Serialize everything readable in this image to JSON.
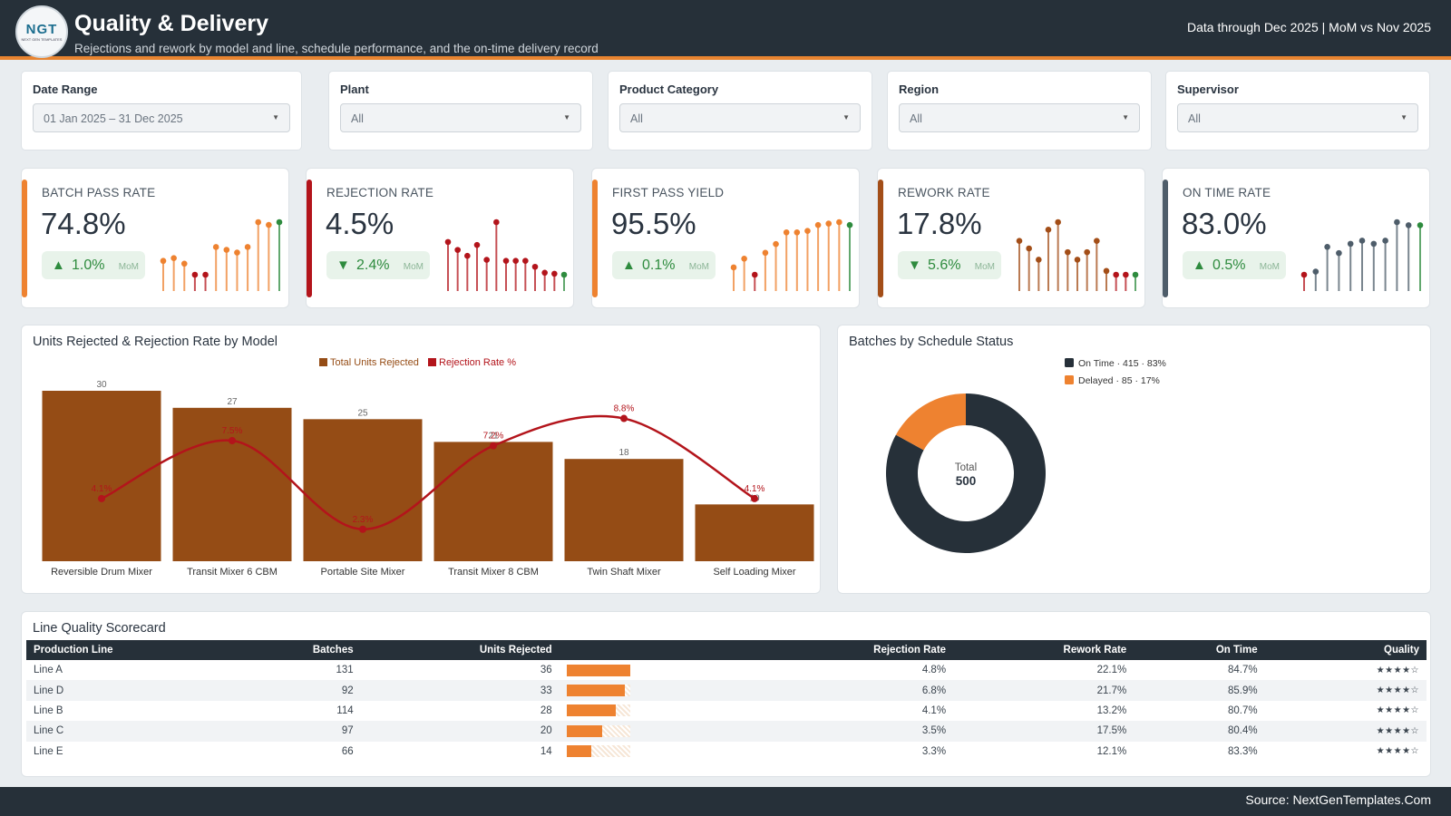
{
  "header": {
    "logo_text": "NGT",
    "logo_sub": "NEXT GEN TEMPLATES",
    "title": "Quality & Delivery",
    "subtitle": "Rejections and rework by model and line, schedule performance, and the on-time delivery record",
    "period": "Data through Dec 2025 | MoM vs Nov 2025"
  },
  "filters": [
    {
      "label": "Date Range",
      "value": "01 Jan 2025 – 31 Dec 2025"
    },
    {
      "label": "Plant",
      "value": "All"
    },
    {
      "label": "Product Category",
      "value": "All"
    },
    {
      "label": "Region",
      "value": "All"
    },
    {
      "label": "Supervisor",
      "value": "All"
    }
  ],
  "kpis": [
    {
      "label": "BATCH PASS RATE",
      "value": "74.8%",
      "arrow": "▲",
      "delta": "1.0%",
      "mom": "MoM",
      "color": "#ee8230",
      "spark": [
        38,
        39,
        37,
        33,
        33,
        43,
        42,
        41,
        43,
        52,
        51,
        52
      ]
    },
    {
      "label": "REJECTION RATE",
      "value": "4.5%",
      "arrow": "▼",
      "delta": "2.4%",
      "mom": "MoM",
      "color": "#b3141b",
      "spark": [
        6.8,
        6.0,
        5.4,
        6.5,
        5.0,
        8.8,
        4.9,
        4.9,
        4.9,
        4.3,
        3.7,
        3.6,
        3.5
      ]
    },
    {
      "label": "FIRST PASS YIELD",
      "value": "95.5%",
      "arrow": "▲",
      "delta": "0.1%",
      "mom": "MoM",
      "color": "#ee8230",
      "spark": [
        92.6,
        93.2,
        92.1,
        93.6,
        94.2,
        95.0,
        95.0,
        95.1,
        95.5,
        95.6,
        95.7,
        95.5
      ]
    },
    {
      "label": "REWORK RATE",
      "value": "17.8%",
      "arrow": "▼",
      "delta": "5.6%",
      "mom": "MoM",
      "color": "#a34e18",
      "spark": [
        22,
        20,
        17,
        25,
        27,
        19,
        17,
        19,
        22,
        14,
        13,
        13,
        13
      ]
    },
    {
      "label": "ON TIME RATE",
      "value": "83.0%",
      "arrow": "▲",
      "delta": "0.5%",
      "mom": "MoM",
      "color": "#4e5d6a",
      "spark": [
        70,
        71,
        79,
        77,
        80,
        81,
        80,
        81,
        87,
        86,
        86
      ]
    }
  ],
  "model_chart": {
    "title": "Units Rejected & Rejection Rate by Model",
    "chart_data": {
      "type": "bar",
      "categories": [
        "Reversible Drum Mixer",
        "Transit Mixer 6 CBM",
        "Portable Site Mixer",
        "Transit Mixer 8 CBM",
        "Twin Shaft Mixer",
        "Self Loading Mixer"
      ],
      "series": [
        {
          "name": "Total Units Rejected",
          "type": "bar",
          "values": [
            30,
            27,
            25,
            21,
            18,
            10
          ],
          "color": "#954c15"
        },
        {
          "name": "Rejection Rate %",
          "type": "line",
          "values": [
            4.1,
            7.5,
            2.3,
            7.2,
            8.8,
            4.1
          ],
          "color": "#b3141b"
        }
      ],
      "ylim": [
        0,
        30
      ],
      "y2lim": [
        0,
        10
      ]
    }
  },
  "schedule_chart": {
    "title": "Batches by Schedule Status",
    "center_label": "Total",
    "center_value": "500",
    "chart_data": {
      "type": "pie",
      "slices": [
        {
          "name": "On Time",
          "value": 415,
          "pct": "83%",
          "legend": "On Time · 415 · 83%",
          "color": "#263039"
        },
        {
          "name": "Delayed",
          "value": 85,
          "pct": "17%",
          "legend": "Delayed · 85 · 17%",
          "color": "#ee8230"
        }
      ]
    }
  },
  "scorecard": {
    "title": "Line Quality Scorecard",
    "columns": [
      "Production Line",
      "Batches",
      "Units Rejected",
      "Rejection Rate",
      "Rework Rate",
      "On Time",
      "Quality"
    ],
    "max_units": 36,
    "rows": [
      {
        "line": "Line A",
        "batches": "131",
        "units": "36",
        "units_n": 36,
        "rej": "4.8%",
        "rework": "22.1%",
        "ontime": "84.7%",
        "stars": "★★★★☆"
      },
      {
        "line": "Line D",
        "batches": "92",
        "units": "33",
        "units_n": 33,
        "rej": "6.8%",
        "rework": "21.7%",
        "ontime": "85.9%",
        "stars": "★★★★☆"
      },
      {
        "line": "Line B",
        "batches": "114",
        "units": "28",
        "units_n": 28,
        "rej": "4.1%",
        "rework": "13.2%",
        "ontime": "80.7%",
        "stars": "★★★★☆"
      },
      {
        "line": "Line C",
        "batches": "97",
        "units": "20",
        "units_n": 20,
        "rej": "3.5%",
        "rework": "17.5%",
        "ontime": "80.4%",
        "stars": "★★★★☆"
      },
      {
        "line": "Line E",
        "batches": "66",
        "units": "14",
        "units_n": 14,
        "rej": "3.3%",
        "rework": "12.1%",
        "ontime": "83.3%",
        "stars": "★★★★☆"
      }
    ]
  },
  "footer": {
    "source": "Source: NextGenTemplates.Com"
  }
}
